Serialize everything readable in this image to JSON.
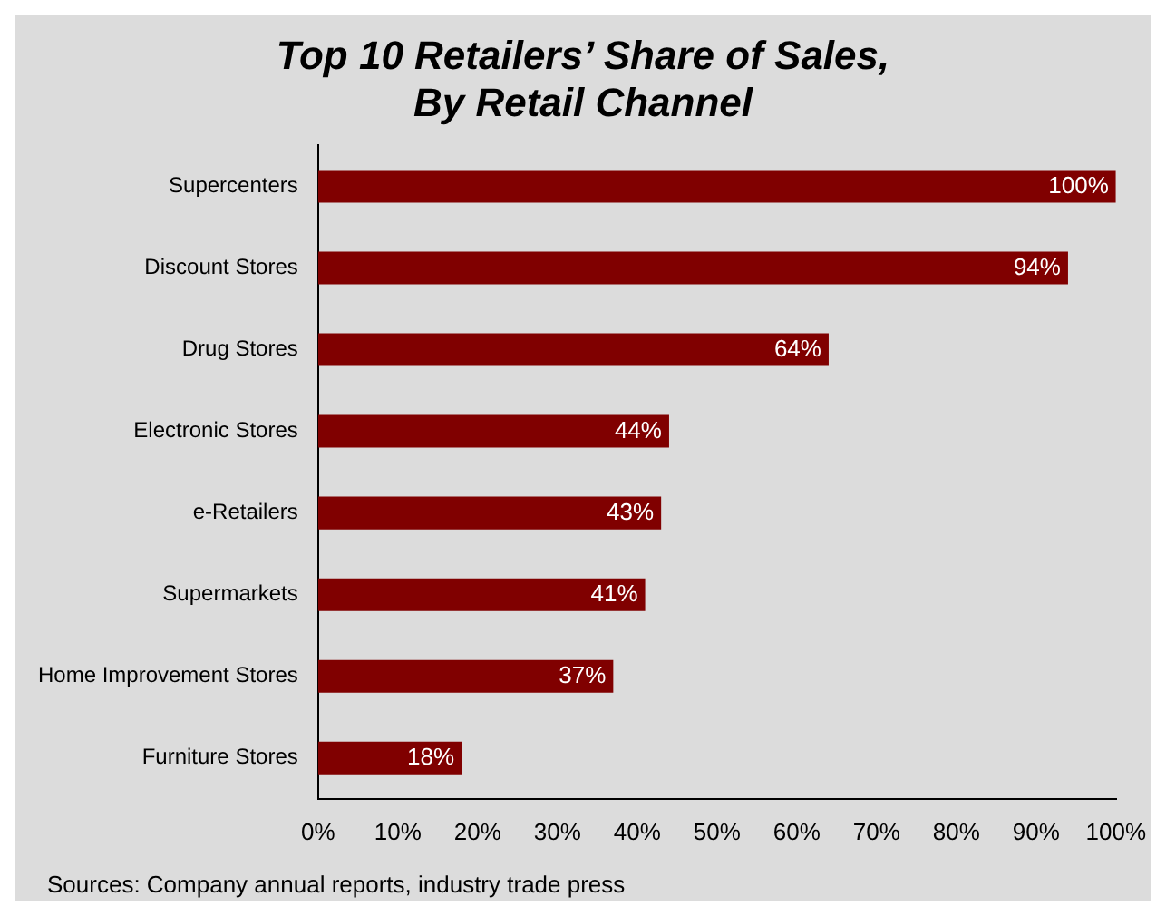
{
  "chart_data": {
    "type": "bar",
    "orientation": "horizontal",
    "title": "Top 10 Retailers’ Share of Sales,\nBy Retail Channel",
    "categories": [
      "Supercenters",
      "Discount Stores",
      "Drug Stores",
      "Electronic Stores",
      "e-Retailers",
      "Supermarkets",
      "Home Improvement Stores",
      "Furniture Stores"
    ],
    "values": [
      100,
      94,
      64,
      44,
      43,
      41,
      37,
      18
    ],
    "value_labels": [
      "100%",
      "94%",
      "64%",
      "44%",
      "43%",
      "41%",
      "37%",
      "18%"
    ],
    "color": "#800000",
    "xlim": [
      0,
      100
    ],
    "xticks": [
      {
        "value": 0,
        "label": "0%"
      },
      {
        "value": 10,
        "label": "10%"
      },
      {
        "value": 20,
        "label": "20%"
      },
      {
        "value": 30,
        "label": "30%"
      },
      {
        "value": 40,
        "label": "40%"
      },
      {
        "value": 50,
        "label": "50%"
      },
      {
        "value": 60,
        "label": "60%"
      },
      {
        "value": 70,
        "label": "70%"
      },
      {
        "value": 80,
        "label": "80%"
      },
      {
        "value": 90,
        "label": "90%"
      },
      {
        "value": 100,
        "label": "100%"
      }
    ],
    "grid": false,
    "legend": false,
    "annotations": [
      "Sources: Company annual reports, industry trade press"
    ]
  }
}
